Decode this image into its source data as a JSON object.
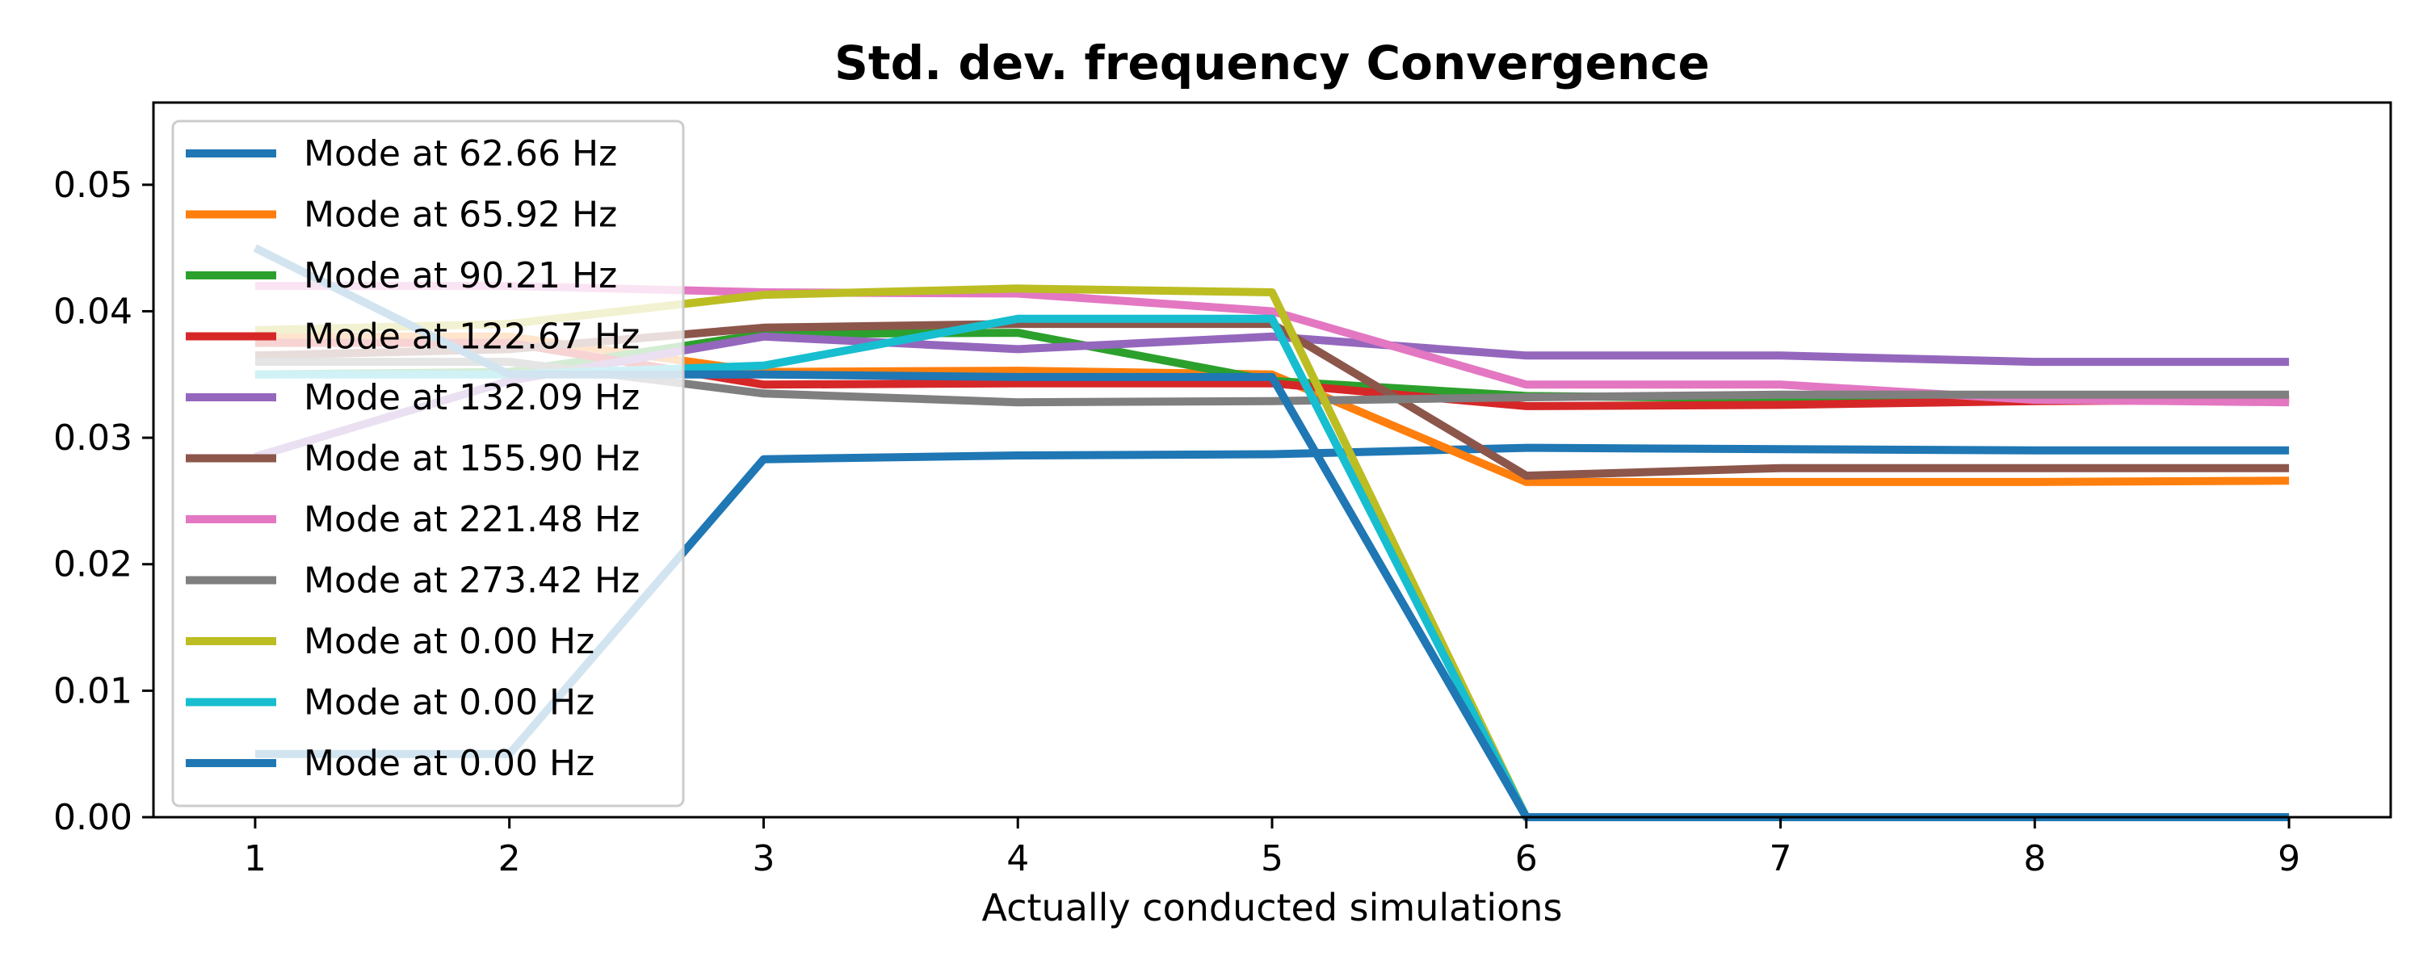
{
  "chart_data": {
    "type": "line",
    "title": "Std. dev. frequency Convergence",
    "xlabel": "Actually conducted simulations",
    "ylabel": "",
    "x": [
      1,
      2,
      3,
      4,
      5,
      6,
      7,
      8,
      9
    ],
    "xticks": [
      "1",
      "2",
      "3",
      "4",
      "5",
      "6",
      "7",
      "8",
      "9"
    ],
    "xlim": [
      0.6,
      9.4
    ],
    "ylim": [
      0,
      0.0565
    ],
    "yticks": [
      "0.00",
      "0.01",
      "0.02",
      "0.03",
      "0.04",
      "0.05"
    ],
    "grid": false,
    "legend_position": "upper-left",
    "series": [
      {
        "name": "Mode at 62.66 Hz",
        "color": "#1f77b4",
        "values": [
          0.005,
          0.005,
          0.0283,
          0.0286,
          0.0287,
          0.0292,
          0.0291,
          0.029,
          0.029
        ]
      },
      {
        "name": "Mode at 65.92 Hz",
        "color": "#ff7f0e",
        "values": [
          0.038,
          0.038,
          0.0352,
          0.0353,
          0.035,
          0.0265,
          0.0265,
          0.0265,
          0.0266
        ]
      },
      {
        "name": "Mode at 90.21 Hz",
        "color": "#2ca02c",
        "values": [
          0.035,
          0.0352,
          0.0382,
          0.0383,
          0.0345,
          0.0333,
          0.0331,
          0.0331,
          0.0331
        ]
      },
      {
        "name": "Mode at 122.67 Hz",
        "color": "#d62728",
        "values": [
          0.0375,
          0.0375,
          0.0342,
          0.0343,
          0.0343,
          0.0325,
          0.0326,
          0.0329,
          0.033
        ]
      },
      {
        "name": "Mode at 132.09 Hz",
        "color": "#9467bd",
        "values": [
          0.0285,
          0.0345,
          0.038,
          0.037,
          0.038,
          0.0365,
          0.0365,
          0.036,
          0.036
        ]
      },
      {
        "name": "Mode at 155.90 Hz",
        "color": "#8c564b",
        "values": [
          0.0365,
          0.037,
          0.0387,
          0.039,
          0.039,
          0.027,
          0.0276,
          0.0276,
          0.0276
        ]
      },
      {
        "name": "Mode at 221.48 Hz",
        "color": "#e377c2",
        "values": [
          0.042,
          0.042,
          0.0415,
          0.0414,
          0.04,
          0.0342,
          0.0342,
          0.033,
          0.0328
        ]
      },
      {
        "name": "Mode at 273.42 Hz",
        "color": "#7f7f7f",
        "values": [
          0.036,
          0.036,
          0.0335,
          0.0328,
          0.0329,
          0.0332,
          0.0334,
          0.0334,
          0.0334
        ]
      },
      {
        "name": "Mode at 0.00 Hz",
        "color": "#bcbd22",
        "values": [
          0.0385,
          0.039,
          0.0413,
          0.0418,
          0.0415,
          0.0,
          0.0,
          0.0,
          0.0
        ]
      },
      {
        "name": "Mode at 0.00 Hz",
        "color": "#17becf",
        "values": [
          0.035,
          0.035,
          0.0357,
          0.0394,
          0.0394,
          0.0,
          0.0,
          0.0,
          0.0
        ]
      },
      {
        "name": "Mode at 0.00 Hz",
        "color": "#1f77b4",
        "values": [
          0.045,
          0.035,
          0.035,
          0.0348,
          0.0348,
          0.0,
          0.0,
          0.0,
          0.0
        ]
      }
    ]
  }
}
